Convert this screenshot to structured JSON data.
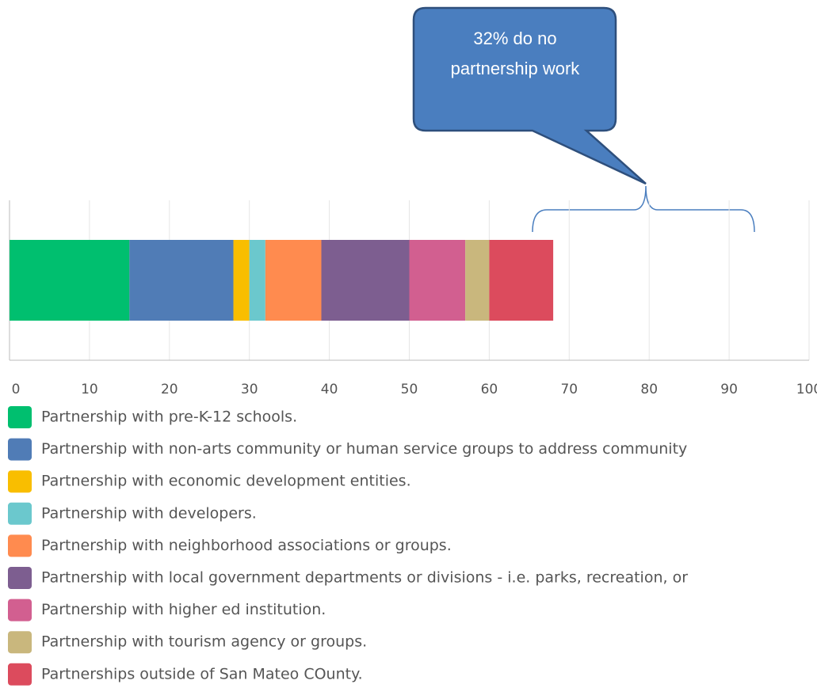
{
  "chart_data": {
    "type": "bar",
    "orientation": "horizontal",
    "stacked": true,
    "categories": [
      null
    ],
    "series": [
      {
        "name": "Partnership with pre-K-12 schools.",
        "color": "#00bf6f",
        "values": [
          15
        ]
      },
      {
        "name": "Partnership with non-arts community or human service groups to address community",
        "color": "#507cb6",
        "values": [
          13
        ]
      },
      {
        "name": "Partnership with economic development entities.",
        "color": "#f9be00",
        "values": [
          2
        ]
      },
      {
        "name": "Partnership with developers.",
        "color": "#6bc8cd",
        "values": [
          2
        ]
      },
      {
        "name": "Partnership with neighborhood associations or groups.",
        "color": "#ff8b4f",
        "values": [
          7
        ]
      },
      {
        "name": "Partnership with local government departments or divisions - i.e. parks, recreation, or",
        "color": "#7d5e90",
        "values": [
          11
        ]
      },
      {
        "name": "Partnership with higher ed institution.",
        "color": "#d25f90",
        "values": [
          7
        ]
      },
      {
        "name": "Partnership with tourism agency or groups.",
        "color": "#c9b77d",
        "values": [
          3
        ]
      },
      {
        "name": "Partnerships outside of San Mateo COunty.",
        "color": "#dc4b5d",
        "values": [
          8
        ]
      }
    ],
    "xlim": [
      0,
      100
    ],
    "xticks": [
      0,
      10,
      20,
      30,
      40,
      50,
      60,
      70,
      80,
      90,
      100
    ],
    "grid": true,
    "annotation": "32% do no partnership work"
  }
}
